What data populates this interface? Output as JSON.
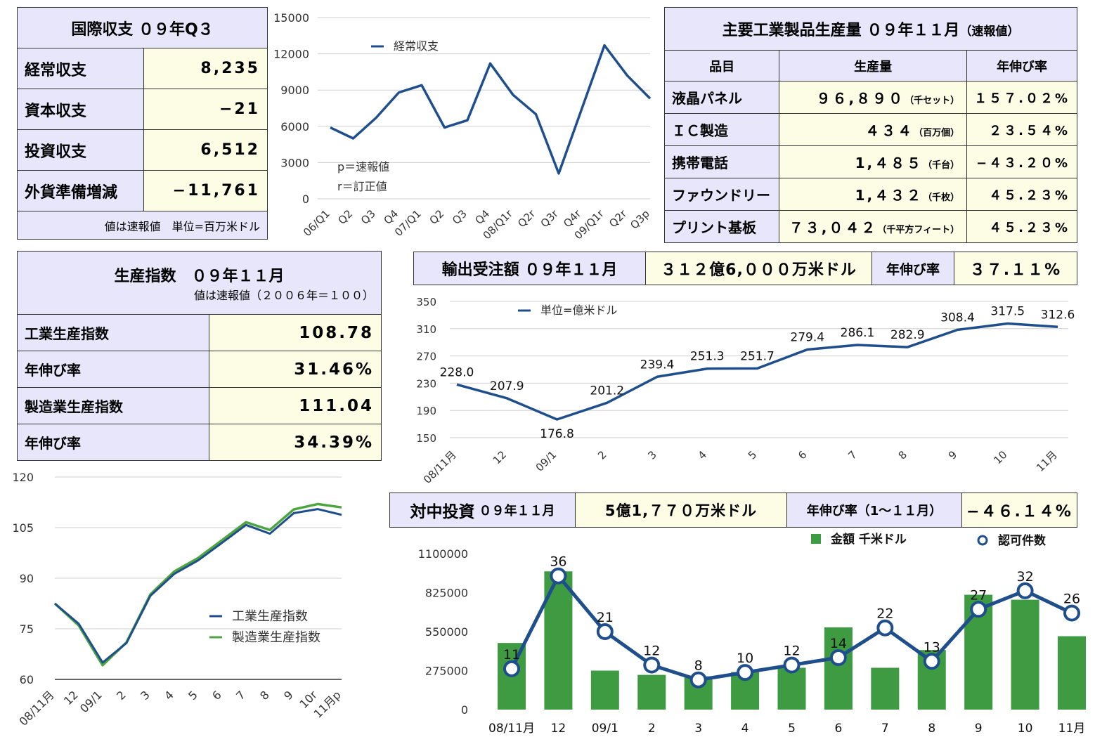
{
  "bop": {
    "title": "国際収支 ０９年Q３",
    "rows": [
      {
        "label": "経常収支",
        "value": "8,235"
      },
      {
        "label": "資本収支",
        "value": "−21"
      },
      {
        "label": "投資収支",
        "value": "6,512"
      },
      {
        "label": "外貨準備増減",
        "value": "−11,761"
      }
    ],
    "note": "値は速報値　単位=百万米ドル"
  },
  "production_volume": {
    "title": "主要工業製品生産量 ０９年１１月",
    "title_suffix": "（速報値）",
    "headers": [
      "品目",
      "生産量",
      "年伸び率"
    ],
    "rows": [
      {
        "item": "液晶パネル",
        "value": "９６,８９０",
        "unit": "（千セット）",
        "growth": "１５７.０２%"
      },
      {
        "item": "ＩＣ製造",
        "value": "４３４",
        "unit": "（百万個）",
        "growth": "２３.５４%"
      },
      {
        "item": "携帯電話",
        "value": "1,４８５",
        "unit": "（千台）",
        "growth": "−４３.２０%"
      },
      {
        "item": "ファウンドリー",
        "value": "1,４３２",
        "unit": "（千枚）",
        "growth": "４５.２３%"
      },
      {
        "item": "プリント基板",
        "value": "７３,０４２",
        "unit": "（千平方フィート）",
        "growth": "４５.２３%"
      }
    ]
  },
  "production_index": {
    "title": "生産指数　０９年１１月",
    "subtitle": "値は速報値（２００６年＝１００）",
    "rows": [
      {
        "label": "工業生産指数",
        "value": "108.78"
      },
      {
        "label": "年伸び率",
        "value": "31.46%"
      },
      {
        "label": "製造業生産指数",
        "value": "111.04"
      },
      {
        "label": "年伸び率",
        "value": "34.39%"
      }
    ]
  },
  "export_orders": {
    "title": "輸出受注額 ０９年１１月",
    "amount": "３１２億6,０００万米ドル",
    "growth_label": "年伸び率",
    "growth_value": "３７.１１%"
  },
  "china_investment": {
    "title": "対中投資",
    "title_small": "０９年１１月",
    "amount": "5億1,７７０万米ドル",
    "growth_label": "年伸び率（1〜１１月）",
    "growth_value": "−４６.１４%"
  },
  "chart_data": [
    {
      "type": "line",
      "series": [
        {
          "name": "経常収支",
          "values": [
            5900,
            5000,
            6700,
            8800,
            9400,
            5900,
            6500,
            11200,
            8600,
            7000,
            2100,
            7400,
            12700,
            10200,
            8300
          ]
        }
      ],
      "categories": [
        "06/Q1",
        "Q2",
        "Q3",
        "Q4",
        "07/Q1",
        "Q2",
        "Q3",
        "Q4",
        "08/Q1r",
        "Q2r",
        "Q3r",
        "Q4r",
        "09/Q1r",
        "Q2r",
        "Q3p"
      ],
      "ylim": [
        0,
        15000
      ],
      "yticks": [
        0,
        3000,
        6000,
        9000,
        12000,
        15000
      ],
      "annotations": [
        "p＝速報値",
        "r＝訂正値"
      ],
      "color": "#1f4e8c"
    },
    {
      "type": "line",
      "series": [
        {
          "name": "単位=億米ドル",
          "values": [
            228.0,
            207.9,
            176.8,
            201.2,
            239.4,
            251.3,
            251.7,
            279.4,
            286.1,
            282.9,
            308.4,
            317.5,
            312.6
          ]
        }
      ],
      "categories": [
        "08/11月",
        "12",
        "09/1",
        "2",
        "3",
        "4",
        "5",
        "6",
        "7",
        "8",
        "9",
        "10",
        "11月"
      ],
      "ylim": [
        150,
        350
      ],
      "yticks": [
        150,
        190,
        230,
        270,
        310,
        350
      ],
      "color": "#1f4e8c"
    },
    {
      "type": "line",
      "series": [
        {
          "name": "工業生産指数",
          "values": [
            82.5,
            76.5,
            65.0,
            70.8,
            84.8,
            91.3,
            95.3,
            100.5,
            105.8,
            103.2,
            109.3,
            110.5,
            108.8
          ],
          "color": "#1f4e8c"
        },
        {
          "name": "製造業生産指数",
          "values": [
            82.5,
            76.0,
            64.2,
            71.0,
            85.2,
            92.0,
            96.0,
            101.3,
            106.6,
            104.3,
            110.4,
            112.0,
            111.0
          ],
          "color": "#4ea540"
        }
      ],
      "categories": [
        "08/11月",
        "12",
        "09/1",
        "2",
        "3",
        "4",
        "5",
        "6",
        "7",
        "8",
        "9",
        "10r",
        "11月p"
      ],
      "ylim": [
        60,
        120
      ],
      "yticks": [
        60,
        75,
        90,
        105,
        120
      ]
    },
    {
      "type": "bar",
      "categories": [
        "08/11月",
        "12",
        "09/1",
        "2",
        "3",
        "4",
        "5",
        "6",
        "7",
        "8",
        "9",
        "10",
        "11月"
      ],
      "series": [
        {
          "name": "金額 千米ドル",
          "values": [
            470000,
            975000,
            275000,
            245000,
            235000,
            265000,
            295000,
            580000,
            295000,
            420000,
            810000,
            775000,
            517700
          ],
          "color": "#3f9b42"
        },
        {
          "name": "認可件数",
          "values": [
            11,
            36,
            21,
            12,
            8,
            10,
            12,
            14,
            22,
            13,
            27,
            32,
            26
          ],
          "color": "#1f4e8c"
        }
      ],
      "ylim": [
        0,
        1100000
      ],
      "yticks": [
        0,
        275000,
        550000,
        825000,
        1100000
      ],
      "secondary_ylim": [
        0,
        42
      ]
    }
  ]
}
